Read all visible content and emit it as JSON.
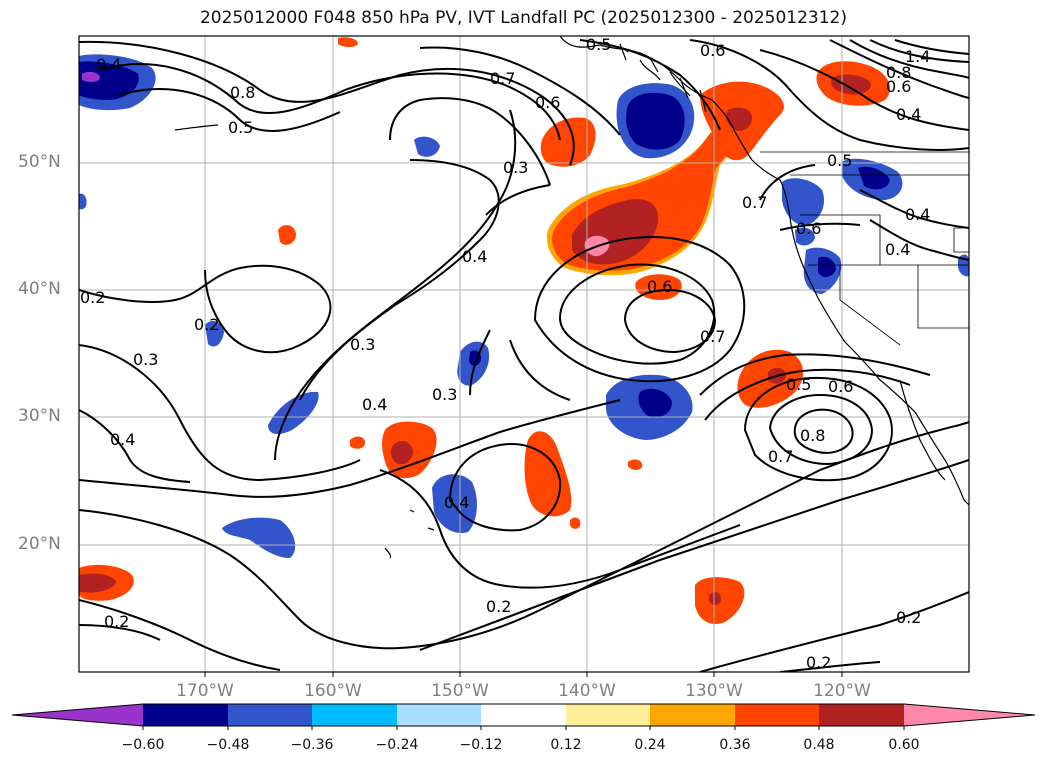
{
  "title": "2025012000 F048 850 hPa PV, IVT Landfall PC (2025012300 - 2025012312)",
  "lat_labels": [
    "50°N",
    "40°N",
    "30°N",
    "20°N"
  ],
  "lon_labels": [
    "170°W",
    "160°W",
    "150°W",
    "140°W",
    "130°W",
    "120°W"
  ],
  "colorbar": {
    "tick_labels": [
      "−0.60",
      "−0.48",
      "−0.36",
      "−0.24",
      "−0.12",
      "0.12",
      "0.24",
      "0.36",
      "0.48",
      "0.60"
    ],
    "colors": [
      "#9933cc",
      "#00008b",
      "#3355cc",
      "#00bbff",
      "#aadfff",
      "#ffffff",
      "#ffee99",
      "#ffa500",
      "#ff4500",
      "#b22222",
      "#ff88aa"
    ]
  },
  "contour_labels": [
    "0.8",
    "0.5",
    "0.6",
    "0.7",
    "0.6",
    "0.3",
    "0.4",
    "0.2",
    "0.3",
    "0.3",
    "0.4",
    "0.3",
    "0.2",
    "0.4",
    "0.4",
    "0.6",
    "0.7",
    "0.7",
    "0.6",
    "0.4",
    "0.4",
    "0.5",
    "0.5",
    "0.6",
    "0.8",
    "0.7",
    "0.2",
    "0.2",
    "0.2",
    "0.4",
    "0.6",
    "1.4",
    "0.8"
  ]
}
